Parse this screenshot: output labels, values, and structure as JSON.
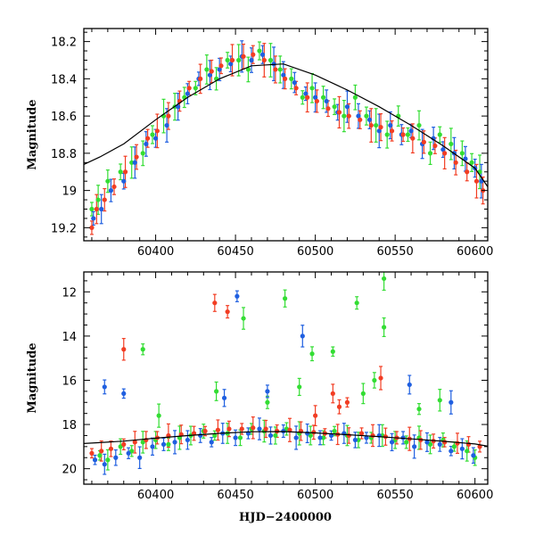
{
  "chart_data": [
    {
      "type": "scatter",
      "panel": "top",
      "ylabel": "Magnitude",
      "xlabel": "",
      "xlim": [
        60355,
        60608
      ],
      "ylim": [
        19.27,
        18.13
      ],
      "y_inverted": true,
      "x_ticks": [
        60400,
        60450,
        60500,
        60550,
        60600
      ],
      "x_tick_labels": [
        "60400",
        "60450",
        "60500",
        "60550",
        "60600"
      ],
      "y_ticks": [
        18.2,
        18.4,
        18.6,
        18.8,
        19.0,
        19.2
      ],
      "y_tick_labels": [
        "18.2",
        "18.4",
        "18.6",
        "18.8",
        "19",
        "19.2"
      ],
      "error_bars": true,
      "grid": false,
      "colors": {
        "green": "#33dd33",
        "blue": "#1f5fe0",
        "red": "#f23d23",
        "model": "#000000"
      },
      "series": [
        {
          "color": "green",
          "x": [
            60360,
            60364,
            60370,
            60378,
            60385,
            60392,
            60398,
            60405,
            60412,
            60418,
            60425,
            60432,
            60438,
            60445,
            60452,
            60458,
            60465,
            60472,
            60478,
            60485,
            60492,
            60498,
            60505,
            60512,
            60518,
            60525,
            60532,
            60538,
            60545,
            60552,
            60558,
            60565,
            60572,
            60578,
            60585,
            60592,
            60598,
            60603
          ],
          "y": [
            19.1,
            19.05,
            18.95,
            18.9,
            18.85,
            18.8,
            18.7,
            18.6,
            18.55,
            18.5,
            18.45,
            18.35,
            18.4,
            18.3,
            18.3,
            18.35,
            18.25,
            18.3,
            18.35,
            18.4,
            18.5,
            18.45,
            18.5,
            18.55,
            18.6,
            18.5,
            18.6,
            18.65,
            18.7,
            18.6,
            18.7,
            18.65,
            18.8,
            18.7,
            18.75,
            18.8,
            18.85,
            18.9
          ]
        },
        {
          "color": "blue",
          "x": [
            60361,
            60366,
            60372,
            60380,
            60387,
            60394,
            60400,
            60407,
            60414,
            60420,
            60427,
            60434,
            60440,
            60447,
            60454,
            60460,
            60467,
            60474,
            60480,
            60487,
            60494,
            60500,
            60507,
            60514,
            60520,
            60527,
            60534,
            60540,
            60547,
            60554,
            60560,
            60567,
            60574,
            60580,
            60587,
            60594,
            60600,
            60604
          ],
          "y": [
            19.15,
            19.1,
            19.0,
            18.95,
            18.85,
            18.75,
            18.72,
            18.65,
            18.55,
            18.48,
            18.4,
            18.38,
            18.35,
            18.32,
            18.28,
            18.3,
            18.27,
            18.32,
            18.38,
            18.42,
            18.48,
            18.5,
            18.52,
            18.58,
            18.55,
            18.6,
            18.62,
            18.68,
            18.65,
            18.7,
            18.68,
            18.75,
            18.72,
            18.78,
            18.8,
            18.83,
            18.88,
            18.95
          ]
        },
        {
          "color": "red",
          "x": [
            60360,
            60363,
            60368,
            60374,
            60381,
            60388,
            60395,
            60401,
            60408,
            60415,
            60421,
            60428,
            60435,
            60441,
            60448,
            60455,
            60461,
            60468,
            60475,
            60481,
            60488,
            60495,
            60501,
            60508,
            60515,
            60521,
            60528,
            60535,
            60541,
            60548,
            60555,
            60561,
            60568,
            60575,
            60581,
            60588,
            60595,
            60601,
            60605
          ],
          "y": [
            19.2,
            19.1,
            19.05,
            18.98,
            18.9,
            18.82,
            18.72,
            18.68,
            18.6,
            18.52,
            18.45,
            18.4,
            18.36,
            18.33,
            18.3,
            18.28,
            18.27,
            18.3,
            18.35,
            18.4,
            18.45,
            18.5,
            18.52,
            18.56,
            18.58,
            18.6,
            18.62,
            18.65,
            18.66,
            18.68,
            18.7,
            18.72,
            18.74,
            18.76,
            18.8,
            18.85,
            18.9,
            18.95,
            19.0
          ]
        }
      ],
      "model_line": {
        "x": [
          60355,
          60365,
          60380,
          60400,
          60420,
          60440,
          60460,
          60480,
          60500,
          60520,
          60540,
          60560,
          60580,
          60600,
          60608
        ],
        "y": [
          18.86,
          18.82,
          18.75,
          18.62,
          18.5,
          18.4,
          18.33,
          18.32,
          18.38,
          18.46,
          18.55,
          18.65,
          18.76,
          18.88,
          18.98
        ]
      }
    },
    {
      "type": "scatter",
      "panel": "bottom",
      "ylabel": "Magnitude",
      "xlabel": "HJD−2400000",
      "xlim": [
        60355,
        60608
      ],
      "ylim": [
        20.7,
        11.1
      ],
      "y_inverted": true,
      "x_ticks": [
        60400,
        60450,
        60500,
        60550,
        60600
      ],
      "x_tick_labels": [
        "60400",
        "60450",
        "60500",
        "60550",
        "60600"
      ],
      "y_ticks": [
        12,
        14,
        16,
        18,
        20
      ],
      "y_tick_labels": [
        "12",
        "14",
        "16",
        "18",
        "20"
      ],
      "error_bars": true,
      "grid": false,
      "colors": {
        "green": "#33dd33",
        "blue": "#1f5fe0",
        "red": "#f23d23",
        "model": "#000000"
      },
      "series": [
        {
          "color": "green",
          "x": [
            60365,
            60370,
            60378,
            60385,
            60392,
            60400,
            60408,
            60415,
            60422,
            60430,
            60437,
            60445,
            60453,
            60460,
            60468,
            60475,
            60482,
            60490,
            60497,
            60505,
            60512,
            60520,
            60527,
            60535,
            60542,
            60550,
            60557,
            60565,
            60572,
            60580,
            60587,
            60595,
            60600,
            60392,
            60455,
            60481,
            60526,
            60543,
            60543,
            60498,
            60511,
            60530,
            60537,
            60565,
            60578,
            60490,
            60470,
            60402,
            60438
          ],
          "y": [
            19.4,
            19.6,
            19.0,
            19.2,
            18.8,
            18.7,
            18.9,
            18.6,
            18.5,
            18.3,
            18.5,
            18.4,
            18.6,
            18.2,
            18.3,
            18.5,
            18.2,
            18.4,
            18.5,
            18.6,
            18.3,
            18.5,
            18.7,
            18.6,
            18.5,
            18.7,
            18.8,
            18.6,
            18.9,
            18.7,
            19.0,
            19.2,
            19.5,
            14.6,
            13.2,
            12.3,
            12.5,
            11.4,
            13.6,
            14.8,
            14.7,
            16.6,
            16.0,
            17.3,
            16.9,
            16.3,
            17.0,
            17.6,
            16.5
          ]
        },
        {
          "color": "blue",
          "x": [
            60362,
            60368,
            60375,
            60383,
            60390,
            60398,
            60405,
            60412,
            60420,
            60428,
            60435,
            60442,
            60450,
            60458,
            60465,
            60472,
            60480,
            60488,
            60495,
            60503,
            60510,
            60518,
            60525,
            60532,
            60540,
            60548,
            60555,
            60562,
            60570,
            60578,
            60585,
            60592,
            60599,
            60451,
            60492,
            60443,
            60470,
            60585,
            60559,
            60368,
            60380
          ],
          "y": [
            19.6,
            19.8,
            19.5,
            19.3,
            19.5,
            19.0,
            18.9,
            18.8,
            18.7,
            18.5,
            18.8,
            18.4,
            18.6,
            18.4,
            18.2,
            18.5,
            18.3,
            18.6,
            18.4,
            18.6,
            18.5,
            18.4,
            18.7,
            18.6,
            18.5,
            18.8,
            18.6,
            19.0,
            18.8,
            18.9,
            19.2,
            19.1,
            19.4,
            12.2,
            14.0,
            16.8,
            16.5,
            17.0,
            16.2,
            16.3,
            16.6
          ]
        },
        {
          "color": "red",
          "x": [
            60360,
            60366,
            60372,
            60380,
            60387,
            60394,
            60401,
            60408,
            60416,
            60424,
            60431,
            60439,
            60446,
            60454,
            60461,
            60469,
            60476,
            60484,
            60491,
            60499,
            60506,
            60514,
            60521,
            60529,
            60536,
            60544,
            60551,
            60559,
            60566,
            60574,
            60581,
            60589,
            60596,
            60603,
            60380,
            60437,
            60445,
            60541,
            60511,
            60515,
            60520,
            60500
          ],
          "y": [
            19.3,
            19.2,
            19.1,
            18.9,
            18.8,
            18.7,
            18.6,
            18.5,
            18.45,
            18.4,
            18.3,
            18.25,
            18.2,
            18.2,
            18.15,
            18.2,
            18.3,
            18.25,
            18.3,
            18.35,
            18.4,
            18.45,
            18.5,
            18.4,
            18.5,
            18.55,
            18.6,
            18.65,
            18.7,
            18.75,
            18.8,
            18.85,
            18.9,
            19.0,
            14.6,
            12.5,
            12.9,
            15.9,
            16.6,
            17.2,
            17.0,
            17.6
          ]
        }
      ],
      "model_line": {
        "x": [
          60355,
          60365,
          60380,
          60400,
          60420,
          60440,
          60460,
          60480,
          60500,
          60520,
          60540,
          60560,
          60580,
          60600,
          60608
        ],
        "y": [
          18.86,
          18.82,
          18.75,
          18.62,
          18.5,
          18.4,
          18.33,
          18.32,
          18.38,
          18.46,
          18.55,
          18.65,
          18.76,
          18.88,
          18.98
        ]
      }
    }
  ]
}
